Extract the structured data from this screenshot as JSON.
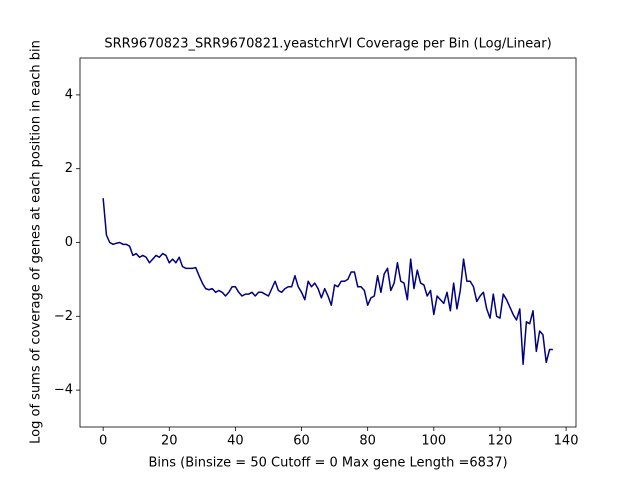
{
  "chart_data": {
    "type": "line",
    "title": "SRR9670823_SRR9670821.yeastchrVI Coverage per Bin (Log/Linear)",
    "xlabel": "Bins  (Binsize = 50 Cutoff = 0 Max gene Length =6837)",
    "ylabel": "Log of sums of coverage of genes at each position in each bin",
    "x": [
      0,
      1,
      2,
      3,
      4,
      5,
      6,
      7,
      8,
      9,
      10,
      11,
      12,
      13,
      14,
      15,
      16,
      17,
      18,
      19,
      20,
      21,
      22,
      23,
      24,
      25,
      26,
      27,
      28,
      29,
      30,
      31,
      32,
      33,
      34,
      35,
      36,
      37,
      38,
      39,
      40,
      41,
      42,
      43,
      44,
      45,
      46,
      47,
      48,
      49,
      50,
      51,
      52,
      53,
      54,
      55,
      56,
      57,
      58,
      59,
      60,
      61,
      62,
      63,
      64,
      65,
      66,
      67,
      68,
      69,
      70,
      71,
      72,
      73,
      74,
      75,
      76,
      77,
      78,
      79,
      80,
      81,
      82,
      83,
      84,
      85,
      86,
      87,
      88,
      89,
      90,
      91,
      92,
      93,
      94,
      95,
      96,
      97,
      98,
      99,
      100,
      101,
      102,
      103,
      104,
      105,
      106,
      107,
      108,
      109,
      110,
      111,
      112,
      113,
      114,
      115,
      116,
      117,
      118,
      119,
      120,
      121,
      122,
      123,
      124,
      125,
      126,
      127,
      128,
      129,
      130,
      131,
      132,
      133,
      134,
      135,
      136
    ],
    "series": [
      {
        "color": "#000080",
        "values": [
          1.2,
          0.2,
          0.0,
          -0.05,
          -0.02,
          0.0,
          -0.05,
          -0.05,
          -0.1,
          -0.35,
          -0.3,
          -0.4,
          -0.35,
          -0.4,
          -0.55,
          -0.45,
          -0.35,
          -0.4,
          -0.3,
          -0.35,
          -0.55,
          -0.45,
          -0.55,
          -0.4,
          -0.65,
          -0.7,
          -0.7,
          -0.7,
          -0.68,
          -0.9,
          -1.1,
          -1.25,
          -1.28,
          -1.25,
          -1.35,
          -1.3,
          -1.35,
          -1.45,
          -1.35,
          -1.2,
          -1.2,
          -1.35,
          -1.45,
          -1.4,
          -1.4,
          -1.35,
          -1.45,
          -1.35,
          -1.35,
          -1.4,
          -1.45,
          -1.25,
          -1.05,
          -1.3,
          -1.35,
          -1.25,
          -1.2,
          -1.2,
          -0.9,
          -1.2,
          -1.35,
          -1.55,
          -1.05,
          -1.2,
          -1.1,
          -1.25,
          -1.5,
          -1.25,
          -1.45,
          -1.7,
          -1.15,
          -1.2,
          -1.05,
          -1.05,
          -1.0,
          -0.8,
          -0.8,
          -1.2,
          -1.2,
          -1.3,
          -1.7,
          -1.5,
          -1.45,
          -0.9,
          -1.35,
          -0.85,
          -0.7,
          -1.3,
          -1.1,
          -0.55,
          -1.05,
          -1.1,
          -1.55,
          -0.45,
          -1.25,
          -0.75,
          -1.1,
          -1.15,
          -1.45,
          -1.3,
          -1.95,
          -1.45,
          -1.55,
          -1.65,
          -1.35,
          -1.85,
          -1.1,
          -1.8,
          -1.3,
          -0.45,
          -1.05,
          -1.05,
          -1.2,
          -1.6,
          -1.45,
          -1.35,
          -1.8,
          -2.05,
          -1.4,
          -2.0,
          -2.05,
          -1.4,
          -1.55,
          -1.75,
          -1.95,
          -2.1,
          -1.8,
          -3.3,
          -2.15,
          -2.2,
          -1.85,
          -2.95,
          -2.4,
          -2.5,
          -3.25,
          -2.9,
          -2.9
        ]
      }
    ],
    "xlim": [
      -7,
      143
    ],
    "xticks": [
      0,
      20,
      40,
      60,
      80,
      100,
      120,
      140
    ],
    "ylim": [
      -5,
      5
    ],
    "yticks": [
      {
        "value": -4,
        "label": "−4"
      },
      {
        "value": -2,
        "label": "−2"
      },
      0,
      2,
      4
    ],
    "grid": false
  }
}
